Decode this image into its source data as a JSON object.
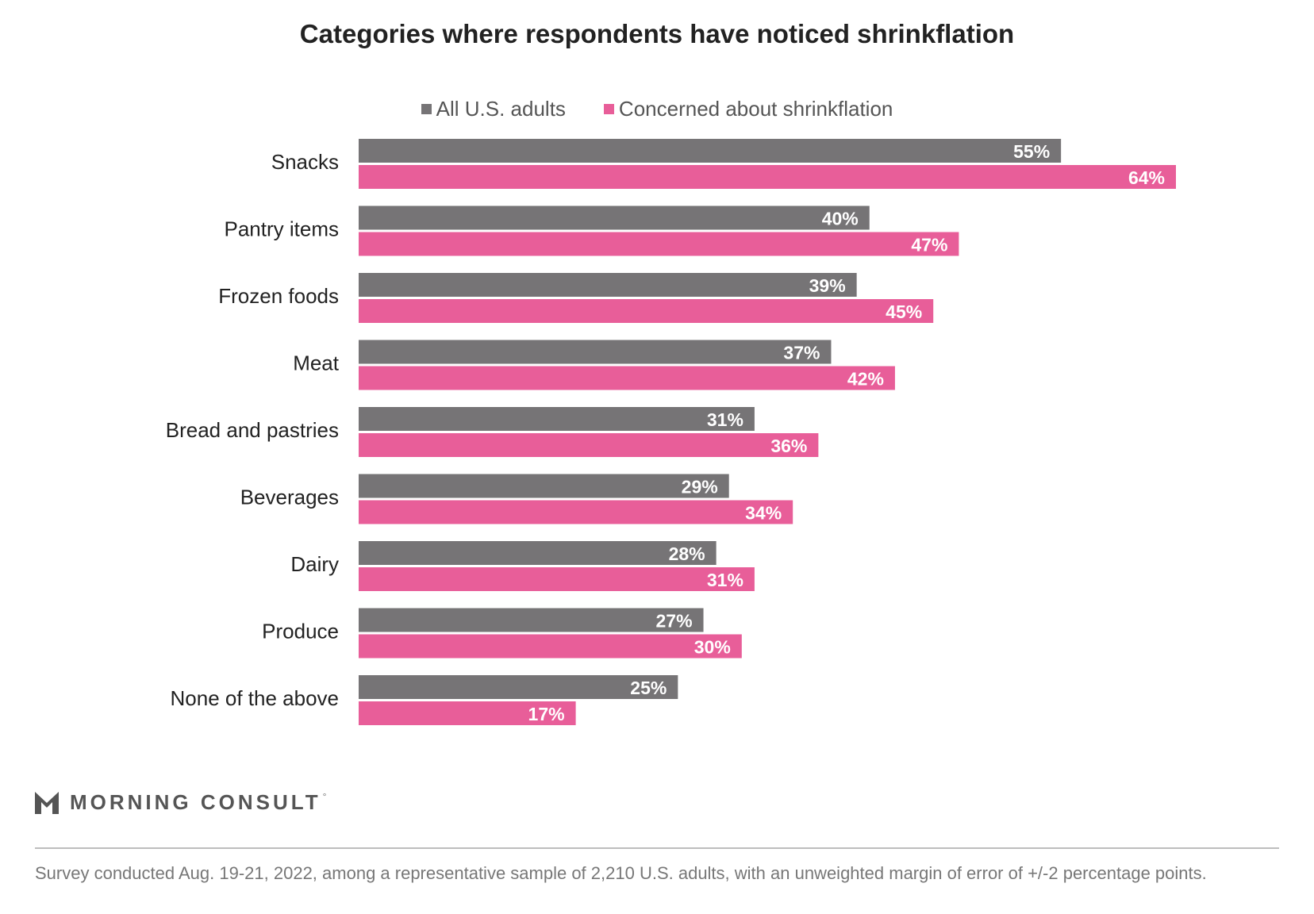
{
  "chart_data": {
    "type": "bar",
    "orientation": "horizontal",
    "title": "Categories where respondents have noticed shrinkflation",
    "categories": [
      "Snacks",
      "Pantry items",
      "Frozen foods",
      "Meat",
      "Bread and pastries",
      "Beverages",
      "Dairy",
      "Produce",
      "None of the above"
    ],
    "series": [
      {
        "name": "All U.S. adults",
        "color": "#767476",
        "values": [
          55,
          40,
          39,
          37,
          31,
          29,
          28,
          27,
          25
        ],
        "labels": [
          "55%",
          "40%",
          "39%",
          "37%",
          "31%",
          "29%",
          "28%",
          "27%",
          "25%"
        ]
      },
      {
        "name": "Concerned about shrinkflation",
        "color": "#E85E99",
        "values": [
          64,
          47,
          45,
          42,
          36,
          34,
          31,
          30,
          17
        ],
        "labels": [
          "64%",
          "47%",
          "45%",
          "42%",
          "36%",
          "34%",
          "31%",
          "30%",
          "17%"
        ]
      }
    ],
    "xlim": [
      0,
      64
    ],
    "grid": false,
    "legend": "top-center"
  },
  "brand": {
    "name": "MORNING CONSULT",
    "mark": "°"
  },
  "footnote": "Survey conducted Aug. 19-21, 2022, among a representative sample of 2,210 U.S. adults, with an unweighted margin of error of +/-2 percentage points."
}
